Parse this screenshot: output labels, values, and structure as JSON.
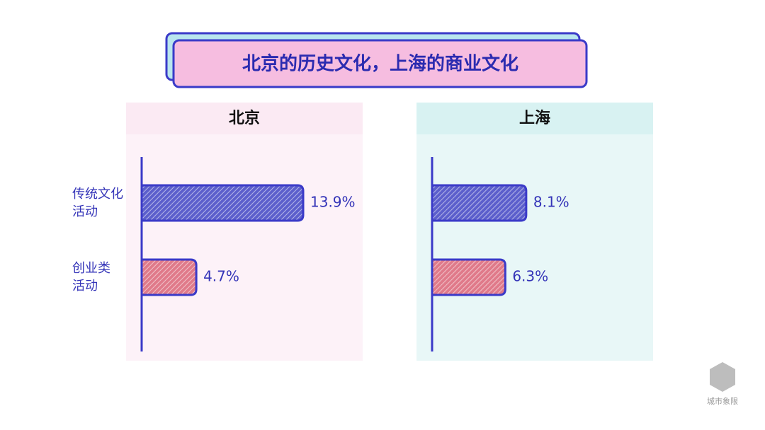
{
  "title": "北京的历史文化，上海的商业文化",
  "watermark": "城市象限",
  "chart_data": [
    {
      "type": "hbar",
      "title": "北京",
      "categories": [
        "传统文化\n活动",
        "创业类\n活动"
      ],
      "values": [
        13.9,
        4.7
      ],
      "value_labels": [
        "13.9%",
        "4.7%"
      ],
      "colors": [
        "#5c5fcc",
        "#e07a8a"
      ],
      "panel_color": "#fbeaf3"
    },
    {
      "type": "hbar",
      "title": "上海",
      "categories": [
        null,
        null
      ],
      "values": [
        8.1,
        6.3
      ],
      "value_labels": [
        "8.1%",
        "6.3%"
      ],
      "colors": [
        "#5c5fcc",
        "#e07a8a"
      ],
      "panel_color": "#d8f2f2"
    }
  ]
}
